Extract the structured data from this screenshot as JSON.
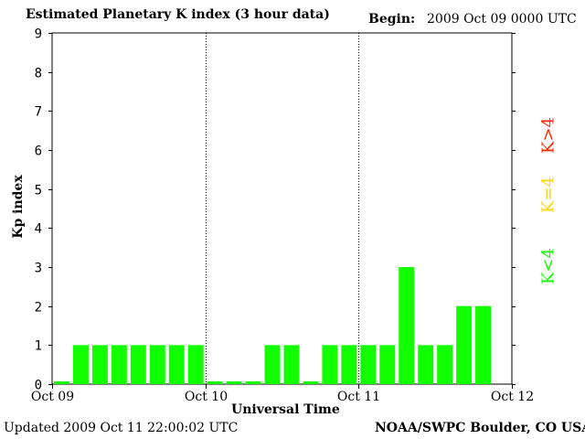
{
  "header": {
    "title": "Estimated Planetary K index (3 hour data)",
    "begin_label": "Begin:",
    "begin_value": "2009 Oct 09 0000 UTC"
  },
  "footer": {
    "updated": "Updated 2009 Oct 11 22:00:02 UTC",
    "credit": "NOAA/SWPC Boulder, CO USA"
  },
  "legend": {
    "high": {
      "label": "K>4",
      "color": "#ff2a00"
    },
    "equal": {
      "label": "K=4",
      "color": "#ffd400"
    },
    "low": {
      "label": "K<4",
      "color": "#11ff00"
    }
  },
  "chart_data": {
    "type": "bar",
    "title": "Estimated Planetary K index (3 hour data)",
    "xlabel": "Universal Time",
    "ylabel": "Kp index",
    "ylim": [
      0,
      9
    ],
    "yticks": [
      0,
      1,
      2,
      3,
      4,
      5,
      6,
      7,
      8,
      9
    ],
    "xticks": [
      "Oct 09",
      "Oct 10",
      "Oct 11",
      "Oct 12"
    ],
    "bar_interval_hours": 3,
    "bar_color": "#11ff00",
    "values": [
      0,
      1,
      1,
      1,
      1,
      1,
      1,
      1,
      0,
      0,
      0,
      1,
      1,
      0,
      1,
      1,
      1,
      1,
      3,
      1,
      1,
      2,
      2
    ],
    "grid": false,
    "day_separators": true
  }
}
